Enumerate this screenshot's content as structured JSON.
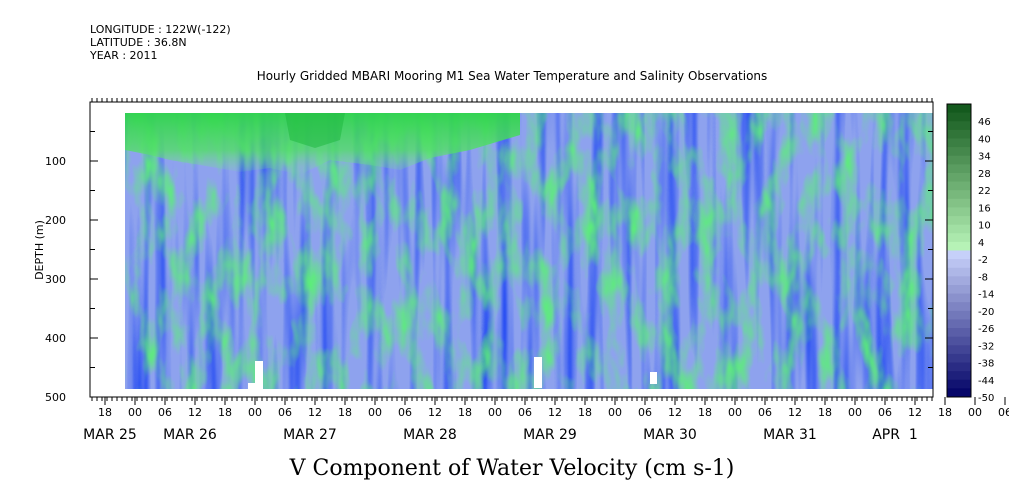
{
  "header": {
    "longitude": "LONGITUDE : 122W(-122)",
    "latitude": "LATITUDE : 36.8N",
    "year": "YEAR : 2011",
    "title": "Hourly Gridded MBARI Mooring M1 Sea Water Temperature and Salinity Observations"
  },
  "chart_data": {
    "type": "heatmap",
    "title": "Hourly Gridded MBARI Mooring M1 Sea Water Temperature and Salinity Observations",
    "xlabel": "V Component of Water Velocity (cm s-1)",
    "ylabel": "DEPTH (m)",
    "y_ticks": [
      100,
      200,
      300,
      400,
      500
    ],
    "ylim": [
      500,
      0
    ],
    "data_depth_range": [
      20,
      487
    ],
    "x_hour_ticks": [
      "18",
      "00",
      "06",
      "12",
      "18",
      "00",
      "06",
      "12",
      "18",
      "00",
      "06",
      "12",
      "18",
      "00",
      "06",
      "12",
      "18",
      "00",
      "06",
      "12",
      "18",
      "00",
      "06",
      "12",
      "18",
      "00",
      "06",
      "12",
      "18",
      "00",
      "06",
      "12"
    ],
    "x_date_labels": [
      "MAR 25",
      "MAR 26",
      "MAR 27",
      "MAR 28",
      "MAR 29",
      "MAR 30",
      "MAR 31",
      "APR  1"
    ],
    "colorbar_levels": [
      "46",
      "40",
      "34",
      "28",
      "22",
      "16",
      "10",
      "4",
      "-2",
      "-8",
      "-14",
      "-20",
      "-26",
      "-32",
      "-38",
      "-44",
      "-50"
    ],
    "colorbar_range": [
      -50,
      52
    ],
    "colorbar_step": 3,
    "grid": false
  }
}
